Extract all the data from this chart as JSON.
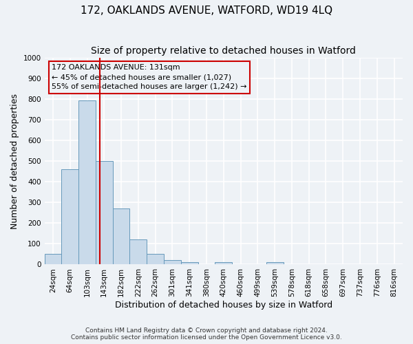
{
  "title1": "172, OAKLANDS AVENUE, WATFORD, WD19 4LQ",
  "title2": "Size of property relative to detached houses in Watford",
  "xlabel": "Distribution of detached houses by size in Watford",
  "ylabel": "Number of detached properties",
  "footnote1": "Contains HM Land Registry data © Crown copyright and database right 2024.",
  "footnote2": "Contains public sector information licensed under the Open Government Licence v3.0.",
  "bar_labels": [
    "24sqm",
    "64sqm",
    "103sqm",
    "143sqm",
    "182sqm",
    "222sqm",
    "262sqm",
    "301sqm",
    "341sqm",
    "380sqm",
    "420sqm",
    "460sqm",
    "499sqm",
    "539sqm",
    "578sqm",
    "618sqm",
    "658sqm",
    "697sqm",
    "737sqm",
    "776sqm",
    "816sqm"
  ],
  "bar_values": [
    50,
    460,
    795,
    500,
    270,
    122,
    52,
    22,
    12,
    0,
    13,
    0,
    0,
    10,
    0,
    0,
    0,
    0,
    0,
    0,
    0
  ],
  "bar_color": "#c9daea",
  "bar_edgecolor": "#6699bb",
  "vline_x": 2.75,
  "vline_color": "#cc0000",
  "ylim": [
    0,
    1000
  ],
  "yticks": [
    0,
    100,
    200,
    300,
    400,
    500,
    600,
    700,
    800,
    900,
    1000
  ],
  "annotation_line1": "172 OAKLANDS AVENUE: 131sqm",
  "annotation_line2": "← 45% of detached houses are smaller (1,027)",
  "annotation_line3": "55% of semi-detached houses are larger (1,242) →",
  "bg_color": "#eef2f6",
  "grid_color": "#ffffff",
  "title1_fontsize": 11,
  "title2_fontsize": 10,
  "xlabel_fontsize": 9,
  "ylabel_fontsize": 9,
  "tick_fontsize": 7.5,
  "footnote_fontsize": 6.5,
  "annot_fontsize": 8
}
